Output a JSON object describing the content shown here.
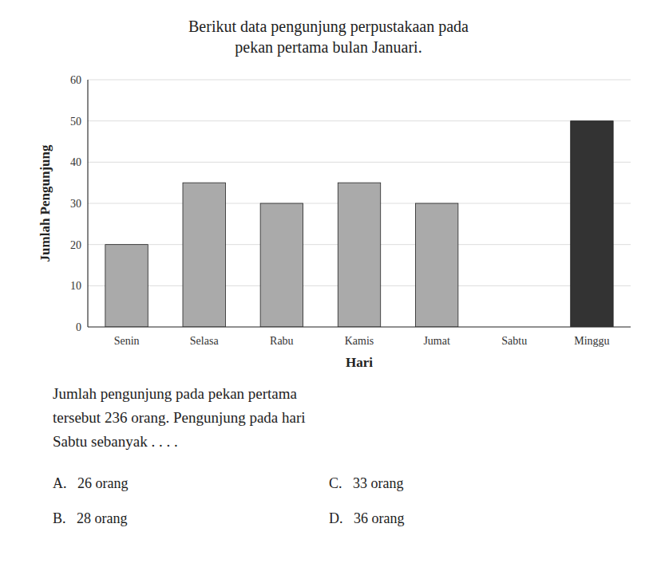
{
  "chart_data": {
    "type": "bar",
    "title": "Berikut data pengunjung perpustakaan pada",
    "subtitle": "pekan pertama bulan Januari.",
    "categories": [
      "Senin",
      "Selasa",
      "Rabu",
      "Kamis",
      "Jumat",
      "Sabtu",
      "Minggu"
    ],
    "values": [
      20,
      35,
      30,
      35,
      30,
      0,
      50
    ],
    "colors": [
      "#aaaaaa",
      "#aaaaaa",
      "#aaaaaa",
      "#aaaaaa",
      "#aaaaaa",
      "#aaaaaa",
      "#333333"
    ],
    "x_label": "Hari",
    "y_label": "Jumlah Pengunjung",
    "ylim": [
      0,
      60
    ],
    "yticks": [
      0,
      10,
      20,
      30,
      40,
      50,
      60
    ],
    "grid": true,
    "annotations": [
      "Jumlah pengunjung pada pekan pertama",
      "tersebut 236 orang. Pengunjung pada hari",
      "Sabtu sebanyak . . . .",
      "A.   26 orang",
      "B.   28 orang",
      "C.   33 orang",
      "D.   36 orang"
    ]
  }
}
